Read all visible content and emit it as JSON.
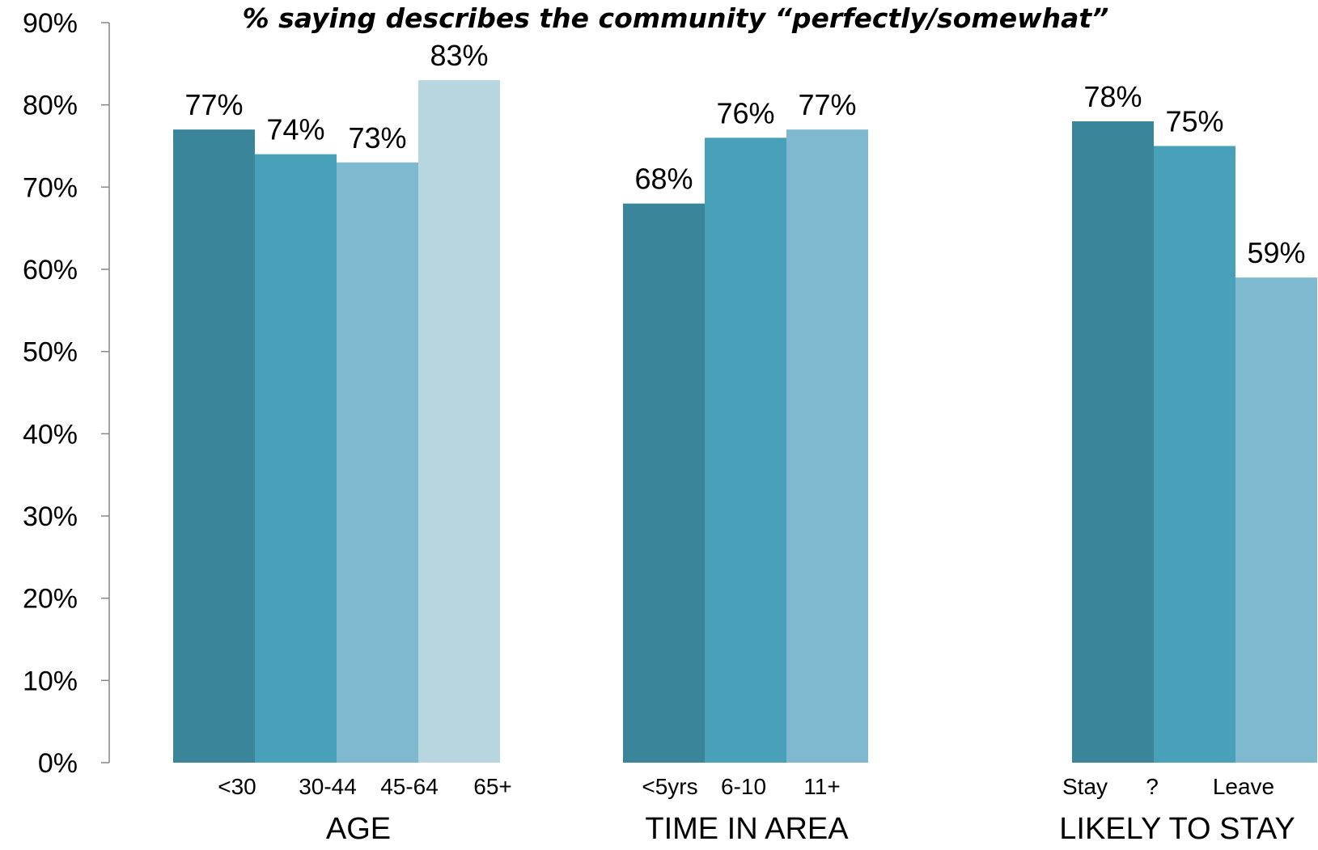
{
  "chart_data": {
    "type": "bar",
    "title": "% saying describes the community “perfectly/somewhat”",
    "xlabel": "",
    "ylabel": "",
    "ylim": [
      0,
      90
    ],
    "y_ticks": [
      "0%",
      "10%",
      "20%",
      "30%",
      "40%",
      "50%",
      "60%",
      "70%",
      "80%",
      "90%"
    ],
    "y_tick_values": [
      0,
      10,
      20,
      30,
      40,
      50,
      60,
      70,
      80,
      90
    ],
    "grid": false,
    "legend": "none",
    "groups": [
      {
        "name": "AGE",
        "categories": [
          "<30",
          "30-44",
          "45-64",
          "65+"
        ],
        "values": [
          77,
          74,
          73,
          83
        ],
        "labels": [
          "77%",
          "74%",
          "73%",
          "83%"
        ],
        "colors": [
          "#3a8599",
          "#48a1b8",
          "#7fb9cf",
          "#b7d6e0"
        ]
      },
      {
        "name": "TIME IN AREA",
        "categories": [
          "<5yrs",
          "6-10",
          "11+"
        ],
        "values": [
          68,
          76,
          77
        ],
        "labels": [
          "68%",
          "76%",
          "77%"
        ],
        "colors": [
          "#3a8599",
          "#48a1b8",
          "#7fb9cf"
        ]
      },
      {
        "name": "LIKELY TO STAY",
        "categories": [
          "Stay",
          "?",
          "Leave"
        ],
        "values": [
          78,
          75,
          59
        ],
        "labels": [
          "78%",
          "75%",
          "59%"
        ],
        "colors": [
          "#3a8599",
          "#48a1b8",
          "#7fb9cf"
        ]
      }
    ]
  }
}
